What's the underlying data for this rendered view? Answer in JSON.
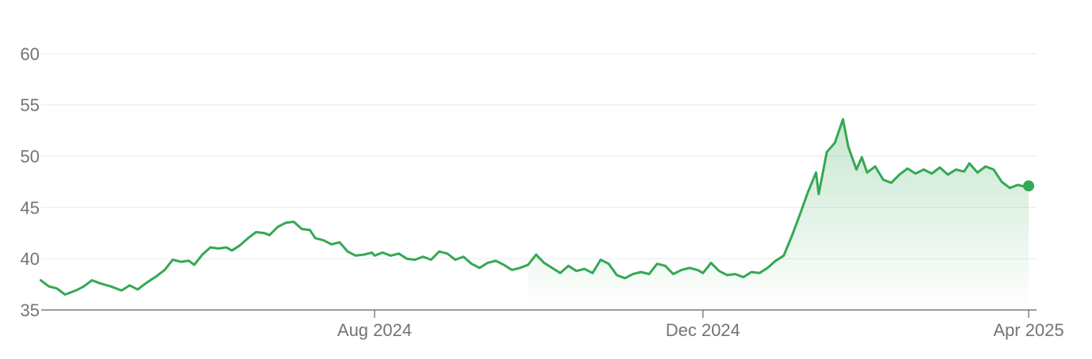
{
  "chart_data": {
    "type": "area",
    "title": "",
    "xlabel": "",
    "ylabel": "",
    "ylim": [
      35,
      62
    ],
    "y_ticks": [
      35,
      40,
      45,
      50,
      55,
      60
    ],
    "x_ticks": [
      {
        "date": "2024-08-01",
        "label": "Aug 2024"
      },
      {
        "date": "2024-12-01",
        "label": "Dec 2024"
      },
      {
        "date": "2025-04-01",
        "label": "Apr 2025"
      }
    ],
    "xlim": [
      "2024-03-30",
      "2025-04-01"
    ],
    "grid": "horizontal",
    "line_color": "#34a853",
    "fill_color": "#34a853",
    "gridline_color": "#e8eaed",
    "axis_color": "#5f6368",
    "series": [
      {
        "points": [
          [
            "2024-03-30",
            37.9
          ],
          [
            "2024-04-02",
            37.3
          ],
          [
            "2024-04-05",
            37.1
          ],
          [
            "2024-04-08",
            36.5
          ],
          [
            "2024-04-12",
            36.9
          ],
          [
            "2024-04-15",
            37.3
          ],
          [
            "2024-04-18",
            37.9
          ],
          [
            "2024-04-21",
            37.6
          ],
          [
            "2024-04-25",
            37.3
          ],
          [
            "2024-04-29",
            36.9
          ],
          [
            "2024-05-02",
            37.4
          ],
          [
            "2024-05-05",
            37.0
          ],
          [
            "2024-05-08",
            37.6
          ],
          [
            "2024-05-12",
            38.3
          ],
          [
            "2024-05-15",
            38.9
          ],
          [
            "2024-05-18",
            39.9
          ],
          [
            "2024-05-21",
            39.7
          ],
          [
            "2024-05-24",
            39.8
          ],
          [
            "2024-05-26",
            39.4
          ],
          [
            "2024-05-29",
            40.4
          ],
          [
            "2024-06-01",
            41.1
          ],
          [
            "2024-06-04",
            41.0
          ],
          [
            "2024-06-07",
            41.1
          ],
          [
            "2024-06-09",
            40.8
          ],
          [
            "2024-06-12",
            41.3
          ],
          [
            "2024-06-15",
            42.0
          ],
          [
            "2024-06-18",
            42.6
          ],
          [
            "2024-06-21",
            42.5
          ],
          [
            "2024-06-23",
            42.3
          ],
          [
            "2024-06-26",
            43.1
          ],
          [
            "2024-06-29",
            43.5
          ],
          [
            "2024-07-02",
            43.6
          ],
          [
            "2024-07-05",
            42.9
          ],
          [
            "2024-07-08",
            42.8
          ],
          [
            "2024-07-10",
            42.0
          ],
          [
            "2024-07-13",
            41.8
          ],
          [
            "2024-07-16",
            41.4
          ],
          [
            "2024-07-19",
            41.6
          ],
          [
            "2024-07-22",
            40.7
          ],
          [
            "2024-07-25",
            40.3
          ],
          [
            "2024-07-28",
            40.4
          ],
          [
            "2024-07-31",
            40.6
          ],
          [
            "2024-08-01",
            40.3
          ],
          [
            "2024-08-04",
            40.6
          ],
          [
            "2024-08-07",
            40.3
          ],
          [
            "2024-08-10",
            40.5
          ],
          [
            "2024-08-13",
            40.0
          ],
          [
            "2024-08-16",
            39.9
          ],
          [
            "2024-08-19",
            40.2
          ],
          [
            "2024-08-22",
            39.9
          ],
          [
            "2024-08-25",
            40.7
          ],
          [
            "2024-08-28",
            40.5
          ],
          [
            "2024-08-31",
            39.9
          ],
          [
            "2024-09-03",
            40.2
          ],
          [
            "2024-09-06",
            39.5
          ],
          [
            "2024-09-09",
            39.1
          ],
          [
            "2024-09-12",
            39.6
          ],
          [
            "2024-09-15",
            39.8
          ],
          [
            "2024-09-18",
            39.4
          ],
          [
            "2024-09-21",
            38.9
          ],
          [
            "2024-09-24",
            39.1
          ],
          [
            "2024-09-27",
            39.4
          ],
          [
            "2024-09-30",
            40.4
          ],
          [
            "2024-10-03",
            39.6
          ],
          [
            "2024-10-06",
            39.1
          ],
          [
            "2024-10-09",
            38.6
          ],
          [
            "2024-10-12",
            39.3
          ],
          [
            "2024-10-15",
            38.8
          ],
          [
            "2024-10-18",
            39.0
          ],
          [
            "2024-10-21",
            38.6
          ],
          [
            "2024-10-24",
            39.9
          ],
          [
            "2024-10-27",
            39.5
          ],
          [
            "2024-10-30",
            38.4
          ],
          [
            "2024-11-02",
            38.1
          ],
          [
            "2024-11-05",
            38.5
          ],
          [
            "2024-11-08",
            38.7
          ],
          [
            "2024-11-11",
            38.5
          ],
          [
            "2024-11-14",
            39.5
          ],
          [
            "2024-11-17",
            39.3
          ],
          [
            "2024-11-20",
            38.5
          ],
          [
            "2024-11-23",
            38.9
          ],
          [
            "2024-11-26",
            39.1
          ],
          [
            "2024-11-29",
            38.9
          ],
          [
            "2024-12-01",
            38.6
          ],
          [
            "2024-12-04",
            39.6
          ],
          [
            "2024-12-07",
            38.8
          ],
          [
            "2024-12-10",
            38.4
          ],
          [
            "2024-12-13",
            38.5
          ],
          [
            "2024-12-16",
            38.2
          ],
          [
            "2024-12-19",
            38.7
          ],
          [
            "2024-12-22",
            38.6
          ],
          [
            "2024-12-25",
            39.1
          ],
          [
            "2024-12-28",
            39.8
          ],
          [
            "2024-12-31",
            40.3
          ],
          [
            "2025-01-03",
            42.2
          ],
          [
            "2025-01-06",
            44.3
          ],
          [
            "2025-01-09",
            46.5
          ],
          [
            "2025-01-12",
            48.4
          ],
          [
            "2025-01-13",
            46.3
          ],
          [
            "2025-01-16",
            50.4
          ],
          [
            "2025-01-19",
            51.3
          ],
          [
            "2025-01-22",
            53.6
          ],
          [
            "2025-01-24",
            50.9
          ],
          [
            "2025-01-27",
            48.7
          ],
          [
            "2025-01-29",
            49.9
          ],
          [
            "2025-01-31",
            48.4
          ],
          [
            "2025-02-03",
            49.0
          ],
          [
            "2025-02-06",
            47.7
          ],
          [
            "2025-02-09",
            47.4
          ],
          [
            "2025-02-12",
            48.2
          ],
          [
            "2025-02-15",
            48.8
          ],
          [
            "2025-02-18",
            48.3
          ],
          [
            "2025-02-21",
            48.7
          ],
          [
            "2025-02-24",
            48.3
          ],
          [
            "2025-02-27",
            48.9
          ],
          [
            "2025-03-02",
            48.2
          ],
          [
            "2025-03-05",
            48.7
          ],
          [
            "2025-03-08",
            48.5
          ],
          [
            "2025-03-10",
            49.3
          ],
          [
            "2025-03-13",
            48.4
          ],
          [
            "2025-03-16",
            49.0
          ],
          [
            "2025-03-19",
            48.7
          ],
          [
            "2025-03-22",
            47.5
          ],
          [
            "2025-03-25",
            46.9
          ],
          [
            "2025-03-28",
            47.2
          ],
          [
            "2025-03-31",
            47.0
          ],
          [
            "2025-04-01",
            47.1
          ]
        ]
      }
    ],
    "last_point_marker": true
  }
}
